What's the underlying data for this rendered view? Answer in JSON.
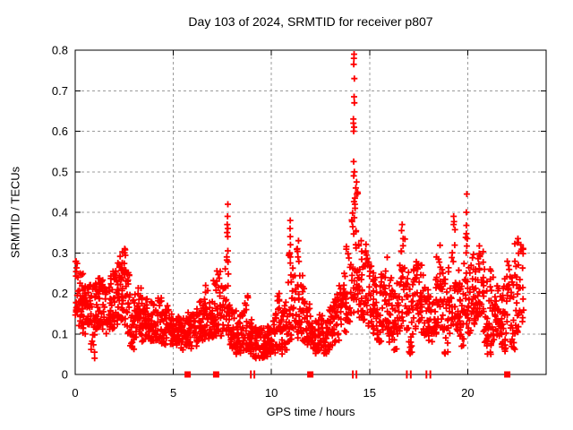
{
  "chart": {
    "title": "Day 103 of 2024, SRMTID for receiver p807",
    "xlabel": "GPS time / hours",
    "ylabel": "SRMTID / TECUs"
  },
  "chart_data": {
    "type": "scatter",
    "title": "Day 103 of 2024, SRMTID for receiver p807",
    "xlabel": "GPS time / hours",
    "ylabel": "SRMTID / TECUs",
    "xlim": [
      0,
      24
    ],
    "ylim": [
      0,
      0.8
    ],
    "x_ticks": [
      0,
      5,
      10,
      15,
      20
    ],
    "y_ticks": [
      0,
      0.1,
      0.2,
      0.3,
      0.4,
      0.5,
      0.6,
      0.7,
      0.8
    ],
    "grid": true,
    "grid_color": "#9b9b9b",
    "marker": "plus",
    "marker_color": "#ff0000",
    "marker_size_px": 7,
    "legend": "none",
    "series_name": "SRMTID",
    "envelope_bins_comment": "each bin = [hour_center, y_min, y_max, n_points] read from the plot",
    "envelope_bins": [
      [
        0.1,
        0.12,
        0.28,
        20
      ],
      [
        0.3,
        0.11,
        0.26,
        22
      ],
      [
        0.5,
        0.1,
        0.22,
        20
      ],
      [
        0.7,
        0.12,
        0.24,
        20
      ],
      [
        0.9,
        0.06,
        0.22,
        18
      ],
      [
        1.1,
        0.11,
        0.26,
        22
      ],
      [
        1.3,
        0.12,
        0.24,
        20
      ],
      [
        1.5,
        0.1,
        0.22,
        18
      ],
      [
        1.7,
        0.11,
        0.24,
        20
      ],
      [
        1.9,
        0.1,
        0.26,
        20
      ],
      [
        2.1,
        0.12,
        0.28,
        22
      ],
      [
        2.3,
        0.13,
        0.3,
        22
      ],
      [
        2.5,
        0.12,
        0.31,
        22
      ],
      [
        2.7,
        0.1,
        0.26,
        20
      ],
      [
        2.9,
        0.06,
        0.2,
        18
      ],
      [
        3.1,
        0.09,
        0.2,
        18
      ],
      [
        3.3,
        0.1,
        0.22,
        20
      ],
      [
        3.5,
        0.08,
        0.18,
        18
      ],
      [
        3.7,
        0.09,
        0.2,
        20
      ],
      [
        3.9,
        0.08,
        0.18,
        18
      ],
      [
        4.1,
        0.08,
        0.17,
        18
      ],
      [
        4.3,
        0.09,
        0.19,
        18
      ],
      [
        4.5,
        0.07,
        0.16,
        18
      ],
      [
        4.7,
        0.08,
        0.17,
        18
      ],
      [
        4.9,
        0.07,
        0.16,
        18
      ],
      [
        5.1,
        0.07,
        0.15,
        18
      ],
      [
        5.3,
        0.08,
        0.16,
        18
      ],
      [
        5.5,
        0.06,
        0.14,
        18
      ],
      [
        5.7,
        0.07,
        0.16,
        18
      ],
      [
        5.9,
        0.06,
        0.15,
        18
      ],
      [
        6.1,
        0.07,
        0.16,
        18
      ],
      [
        6.3,
        0.08,
        0.18,
        18
      ],
      [
        6.5,
        0.08,
        0.2,
        18
      ],
      [
        6.7,
        0.09,
        0.22,
        18
      ],
      [
        6.9,
        0.08,
        0.18,
        18
      ],
      [
        7.1,
        0.09,
        0.24,
        18
      ],
      [
        7.3,
        0.1,
        0.26,
        18
      ],
      [
        7.5,
        0.09,
        0.24,
        18
      ],
      [
        7.7,
        0.1,
        0.3,
        16
      ],
      [
        7.9,
        0.07,
        0.18,
        18
      ],
      [
        8.1,
        0.06,
        0.16,
        18
      ],
      [
        8.3,
        0.05,
        0.14,
        20
      ],
      [
        8.5,
        0.05,
        0.16,
        20
      ],
      [
        8.7,
        0.06,
        0.2,
        18
      ],
      [
        8.9,
        0.05,
        0.14,
        20
      ],
      [
        9.1,
        0.04,
        0.12,
        20
      ],
      [
        9.3,
        0.04,
        0.11,
        20
      ],
      [
        9.5,
        0.04,
        0.12,
        20
      ],
      [
        9.7,
        0.04,
        0.1,
        20
      ],
      [
        9.9,
        0.05,
        0.13,
        20
      ],
      [
        10.1,
        0.05,
        0.14,
        18
      ],
      [
        10.3,
        0.06,
        0.2,
        18
      ],
      [
        10.5,
        0.05,
        0.16,
        18
      ],
      [
        10.7,
        0.06,
        0.18,
        16
      ],
      [
        10.9,
        0.08,
        0.3,
        16
      ],
      [
        11.1,
        0.08,
        0.28,
        16
      ],
      [
        11.3,
        0.09,
        0.33,
        16
      ],
      [
        11.5,
        0.1,
        0.28,
        18
      ],
      [
        11.7,
        0.08,
        0.22,
        18
      ],
      [
        11.9,
        0.07,
        0.18,
        18
      ],
      [
        12.1,
        0.06,
        0.16,
        18
      ],
      [
        12.3,
        0.05,
        0.14,
        18
      ],
      [
        12.5,
        0.06,
        0.15,
        18
      ],
      [
        12.7,
        0.05,
        0.14,
        18
      ],
      [
        12.9,
        0.06,
        0.16,
        18
      ],
      [
        13.1,
        0.07,
        0.18,
        18
      ],
      [
        13.3,
        0.08,
        0.2,
        18
      ],
      [
        13.5,
        0.08,
        0.22,
        18
      ],
      [
        13.7,
        0.1,
        0.25,
        18
      ],
      [
        13.9,
        0.12,
        0.32,
        18
      ],
      [
        14.1,
        0.15,
        0.4,
        18
      ],
      [
        14.3,
        0.18,
        0.47,
        20
      ],
      [
        14.5,
        0.14,
        0.35,
        20
      ],
      [
        14.7,
        0.13,
        0.3,
        18
      ],
      [
        14.9,
        0.12,
        0.33,
        18
      ],
      [
        15.1,
        0.1,
        0.28,
        18
      ],
      [
        15.3,
        0.1,
        0.24,
        18
      ],
      [
        15.5,
        0.08,
        0.22,
        18
      ],
      [
        15.7,
        0.1,
        0.26,
        18
      ],
      [
        15.9,
        0.1,
        0.3,
        18
      ],
      [
        16.1,
        0.08,
        0.24,
        18
      ],
      [
        16.3,
        0.06,
        0.2,
        18
      ],
      [
        16.5,
        0.1,
        0.33,
        18
      ],
      [
        16.7,
        0.12,
        0.36,
        18
      ],
      [
        16.9,
        0.1,
        0.26,
        18
      ],
      [
        17.1,
        0.05,
        0.22,
        18
      ],
      [
        17.3,
        0.1,
        0.28,
        18
      ],
      [
        17.5,
        0.12,
        0.34,
        18
      ],
      [
        17.7,
        0.1,
        0.28,
        18
      ],
      [
        17.9,
        0.08,
        0.22,
        18
      ],
      [
        18.1,
        0.08,
        0.2,
        18
      ],
      [
        18.3,
        0.1,
        0.26,
        18
      ],
      [
        18.5,
        0.12,
        0.33,
        18
      ],
      [
        18.7,
        0.1,
        0.28,
        18
      ],
      [
        18.9,
        0.05,
        0.24,
        18
      ],
      [
        19.1,
        0.1,
        0.3,
        18
      ],
      [
        19.3,
        0.12,
        0.39,
        18
      ],
      [
        19.5,
        0.1,
        0.3,
        18
      ],
      [
        19.7,
        0.06,
        0.22,
        18
      ],
      [
        19.9,
        0.1,
        0.4,
        16
      ],
      [
        20.1,
        0.1,
        0.28,
        18
      ],
      [
        20.3,
        0.12,
        0.3,
        18
      ],
      [
        20.5,
        0.14,
        0.3,
        18
      ],
      [
        20.7,
        0.14,
        0.32,
        18
      ],
      [
        20.9,
        0.07,
        0.28,
        18
      ],
      [
        21.1,
        0.05,
        0.26,
        18
      ],
      [
        21.3,
        0.07,
        0.24,
        18
      ],
      [
        21.5,
        0.08,
        0.22,
        18
      ],
      [
        21.7,
        0.06,
        0.2,
        18
      ],
      [
        21.9,
        0.05,
        0.24,
        18
      ],
      [
        22.1,
        0.08,
        0.28,
        16
      ],
      [
        22.3,
        0.06,
        0.25,
        16
      ],
      [
        22.5,
        0.1,
        0.34,
        22
      ],
      [
        22.75,
        0.12,
        0.33,
        16
      ]
    ],
    "peak_points_comment": "individually visible high/low outlier points [hour, values...]",
    "peak_points": [
      {
        "x": 14.2,
        "ys": [
          0.79,
          0.78,
          0.765,
          0.73,
          0.685,
          0.67,
          0.63,
          0.62,
          0.61,
          0.6,
          0.525,
          0.5,
          0.49
        ]
      },
      {
        "x": 14.25,
        "ys": [
          0.435,
          0.42,
          0.41
        ]
      },
      {
        "x": 14.32,
        "ys": [
          0.475,
          0.46,
          0.445
        ]
      },
      {
        "x": 7.75,
        "ys": [
          0.42,
          0.39,
          0.37,
          0.36,
          0.35,
          0.34,
          0.305,
          0.29
        ]
      },
      {
        "x": 10.95,
        "ys": [
          0.38,
          0.36,
          0.34,
          0.32,
          0.3,
          0.29,
          0.275
        ]
      },
      {
        "x": 11.35,
        "ys": [
          0.33,
          0.31,
          0.29
        ]
      },
      {
        "x": 19.95,
        "ys": [
          0.445,
          0.4,
          0.335,
          0.3,
          0.25
        ]
      },
      {
        "x": 19.3,
        "ys": [
          0.39,
          0.37
        ]
      },
      {
        "x": 16.65,
        "ys": [
          0.37,
          0.355
        ]
      },
      {
        "x": 2.5,
        "ys": [
          0.31,
          0.3
        ]
      },
      {
        "x": 22.55,
        "ys": [
          0.335,
          0.325
        ]
      },
      {
        "x": 1.0,
        "ys": [
          0.055,
          0.04
        ]
      }
    ],
    "baseline_markers_comment": "red event marks drawn on the x-axis line (y=0)",
    "baseline_markers": {
      "squares_hours": [
        5.73,
        7.18,
        11.98,
        22.02
      ],
      "tick_pair_hours": [
        [
          8.95,
          9.13
        ],
        [
          14.15,
          14.33
        ],
        [
          16.9,
          17.1
        ],
        [
          17.9,
          18.1
        ]
      ]
    }
  },
  "style_colors": {
    "data_red": "#ff0000",
    "axis_black": "#000000",
    "grid_gray": "#9b9b9b",
    "background": "#ffffff"
  }
}
